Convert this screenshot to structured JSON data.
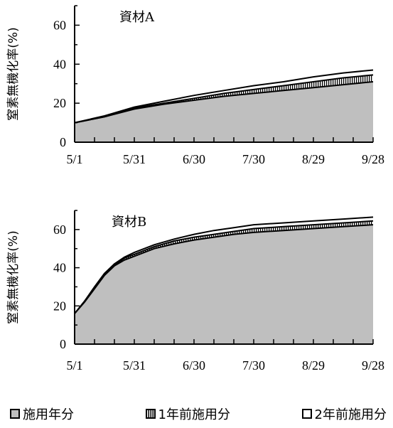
{
  "chart_data": [
    {
      "type": "area",
      "title": "資材A",
      "ylabel": "窒素無機化率(%)",
      "xlabel": "",
      "x_ticks": [
        "5/1",
        "5/31",
        "6/30",
        "7/30",
        "8/29",
        "9/28"
      ],
      "x_days": [
        0,
        15,
        30,
        45,
        60,
        75,
        90,
        105,
        120,
        135,
        150
      ],
      "ylim": [
        0,
        70
      ],
      "y_ticks": [
        0,
        20,
        40,
        60
      ],
      "series": [
        {
          "name": "施用年分",
          "style": "gray",
          "values": [
            10,
            13,
            17,
            19.5,
            21.5,
            23.5,
            25,
            26.5,
            28,
            29.5,
            31
          ]
        },
        {
          "name": "1年前施用分",
          "style": "hatch",
          "values": [
            10,
            13,
            17.5,
            20,
            22.5,
            25,
            27,
            29,
            31,
            33,
            34.5
          ]
        },
        {
          "name": "2年前施用分",
          "style": "white",
          "values": [
            10,
            13.5,
            18,
            21,
            24,
            26.5,
            29,
            31,
            33.5,
            35.5,
            37
          ]
        }
      ]
    },
    {
      "type": "area",
      "title": "資材B",
      "ylabel": "窒素無機化率(%)",
      "xlabel": "",
      "x_ticks": [
        "5/1",
        "5/31",
        "6/30",
        "7/30",
        "8/29",
        "9/28"
      ],
      "x_days": [
        0,
        5,
        10,
        15,
        20,
        25,
        30,
        40,
        50,
        60,
        70,
        80,
        90,
        105,
        120,
        135,
        150
      ],
      "ylim": [
        0,
        70
      ],
      "y_ticks": [
        0,
        20,
        40,
        60
      ],
      "series": [
        {
          "name": "施用年分",
          "style": "gray",
          "values": [
            16,
            22,
            29,
            36,
            41,
            44,
            46,
            50,
            52.5,
            54.5,
            56,
            57.5,
            58.5,
            59.5,
            60.5,
            61.5,
            62.5
          ]
        },
        {
          "name": "1年前施用分",
          "style": "hatch",
          "values": [
            16,
            22.5,
            29.5,
            36.5,
            41.5,
            45,
            47,
            51,
            54,
            56,
            57.5,
            59,
            60.5,
            61.5,
            62.5,
            63.5,
            64.5
          ]
        },
        {
          "name": "2年前施用分",
          "style": "white",
          "values": [
            16,
            22.5,
            30,
            37,
            42,
            45.5,
            48,
            52,
            55,
            57.5,
            59.5,
            61,
            62.5,
            63.5,
            64.5,
            65.5,
            66.5
          ]
        }
      ]
    }
  ],
  "legend": [
    {
      "label": "施用年分",
      "style": "gray"
    },
    {
      "label": "1年前施用分",
      "style": "hatch"
    },
    {
      "label": "2年前施用分",
      "style": "white"
    }
  ],
  "colors": {
    "gray_fill": "#bfbfbf",
    "hatch_fill": "#ffffff",
    "line": "#000000"
  }
}
